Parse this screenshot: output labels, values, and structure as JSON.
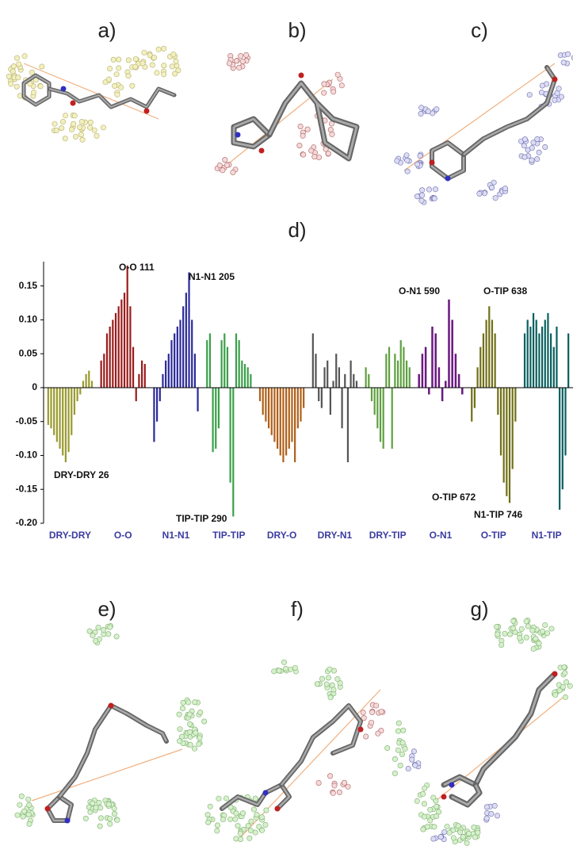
{
  "panel_labels": [
    "a)",
    "b)",
    "c)",
    "e)",
    "f)",
    "g)"
  ],
  "chart_data": {
    "type": "bar",
    "title": "d)",
    "ylim": [
      -0.2,
      0.18
    ],
    "yticks": [
      0.15,
      {
        "value": 0.1,
        "label": "0.10"
      },
      0.05,
      0,
      -0.05,
      {
        "value": -0.1,
        "label": "-0.10"
      },
      -0.15,
      {
        "value": -0.2,
        "label": "-0.20"
      }
    ],
    "series": [
      {
        "name": "DRY-DRY",
        "color": "#9a9a30",
        "values": [
          -0.055,
          -0.06,
          -0.07,
          -0.08,
          -0.09,
          -0.1,
          -0.11,
          -0.095,
          -0.07,
          -0.04,
          -0.02,
          -0.01,
          0.01,
          0.02,
          0.025,
          0.01
        ]
      },
      {
        "name": "O-O",
        "color": "#9b1b1b",
        "values": [
          0.04,
          0.05,
          0.08,
          0.09,
          0.1,
          0.11,
          0.12,
          0.13,
          0.14,
          0.18,
          0.12,
          0.06,
          -0.02,
          0.02,
          0.04,
          0.035
        ]
      },
      {
        "name": "N1-N1",
        "color": "#2a2a9a",
        "values": [
          -0.08,
          -0.05,
          -0.02,
          0.02,
          0.04,
          0.05,
          0.07,
          0.08,
          0.09,
          0.1,
          0.12,
          0.14,
          0.17,
          0.1,
          0.05,
          -0.035
        ]
      },
      {
        "name": "TIP-TIP",
        "color": "#3aa04a",
        "values": [
          0.07,
          0.08,
          -0.095,
          -0.09,
          -0.06,
          0.07,
          0.08,
          0.06,
          -0.14,
          -0.19,
          0.08,
          0.07,
          0.04,
          0.035,
          0.03,
          0.02
        ]
      },
      {
        "name": "DRY-O",
        "color": "#b06018",
        "values": [
          -0.02,
          -0.04,
          -0.05,
          -0.06,
          -0.07,
          -0.08,
          -0.09,
          -0.1,
          -0.11,
          -0.1,
          -0.09,
          -0.08,
          -0.11,
          -0.06,
          -0.05,
          -0.03
        ]
      },
      {
        "name": "DRY-N1",
        "color": "#555555",
        "values": [
          0.08,
          0.05,
          -0.02,
          -0.03,
          0.03,
          0.04,
          -0.04,
          0.01,
          0.05,
          0.03,
          -0.06,
          0.02,
          -0.11,
          0.04,
          0.02,
          0.01
        ]
      },
      {
        "name": "DRY-TIP",
        "color": "#5fa040",
        "values": [
          0.03,
          0.02,
          -0.02,
          -0.04,
          -0.06,
          -0.08,
          -0.09,
          0.05,
          0.06,
          -0.09,
          0.05,
          0.04,
          0.07,
          0.06,
          0.04,
          0.03
        ]
      },
      {
        "name": "O-N1",
        "color": "#6a1a80",
        "values": [
          0.02,
          0.05,
          0.06,
          -0.01,
          0.09,
          0.08,
          0.03,
          -0.02,
          0.01,
          0.13,
          0.1,
          0.05,
          0.02,
          -0.01
        ]
      },
      {
        "name": "O-TIP",
        "color": "#707018",
        "values": [
          -0.05,
          -0.03,
          0.03,
          0.06,
          0.08,
          0.1,
          0.12,
          0.1,
          0.08,
          -0.04,
          -0.1,
          -0.14,
          -0.16,
          -0.17,
          -0.12,
          -0.05
        ]
      },
      {
        "name": "N1-TIP",
        "color": "#0a6060",
        "values": [
          0.08,
          0.1,
          0.09,
          0.11,
          0.1,
          0.08,
          0.09,
          0.1,
          0.11,
          0.08,
          0.06,
          0.09,
          -0.18,
          -0.15,
          -0.1,
          0.08
        ]
      }
    ],
    "annotations": [
      "DRY-DRY 26",
      "O-O 111",
      "N1-N1 205",
      "TIP-TIP 290",
      "O-N1 590",
      "O-TIP 638",
      "O-TIP 672",
      "N1-TIP 746"
    ]
  }
}
